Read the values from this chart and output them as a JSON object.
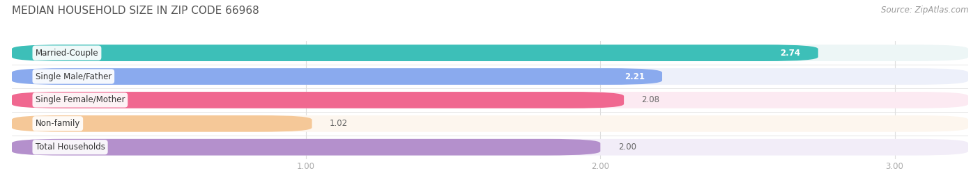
{
  "title": "MEDIAN HOUSEHOLD SIZE IN ZIP CODE 66968",
  "source": "Source: ZipAtlas.com",
  "categories": [
    "Married-Couple",
    "Single Male/Father",
    "Single Female/Mother",
    "Non-family",
    "Total Households"
  ],
  "values": [
    2.74,
    2.21,
    2.08,
    1.02,
    2.0
  ],
  "bar_colors": [
    "#3dbfb8",
    "#8aaaee",
    "#f06890",
    "#f5c898",
    "#b490cc"
  ],
  "bar_bg_colors": [
    "#edf6f6",
    "#edf0fa",
    "#fceaf2",
    "#fdf6ee",
    "#f2edf8"
  ],
  "value_inside": [
    true,
    true,
    false,
    false,
    false
  ],
  "xlim_min": 0.0,
  "xlim_max": 3.25,
  "xticks": [
    1.0,
    2.0,
    3.0
  ],
  "bar_height": 0.7,
  "title_fontsize": 11,
  "source_fontsize": 8.5,
  "label_fontsize": 8.5,
  "value_fontsize": 8.5,
  "tick_fontsize": 8.5,
  "background_color": "#ffffff",
  "row_bg_color": "#f7f7f7",
  "separator_color": "#e0e0e0",
  "grid_color": "#dddddd"
}
